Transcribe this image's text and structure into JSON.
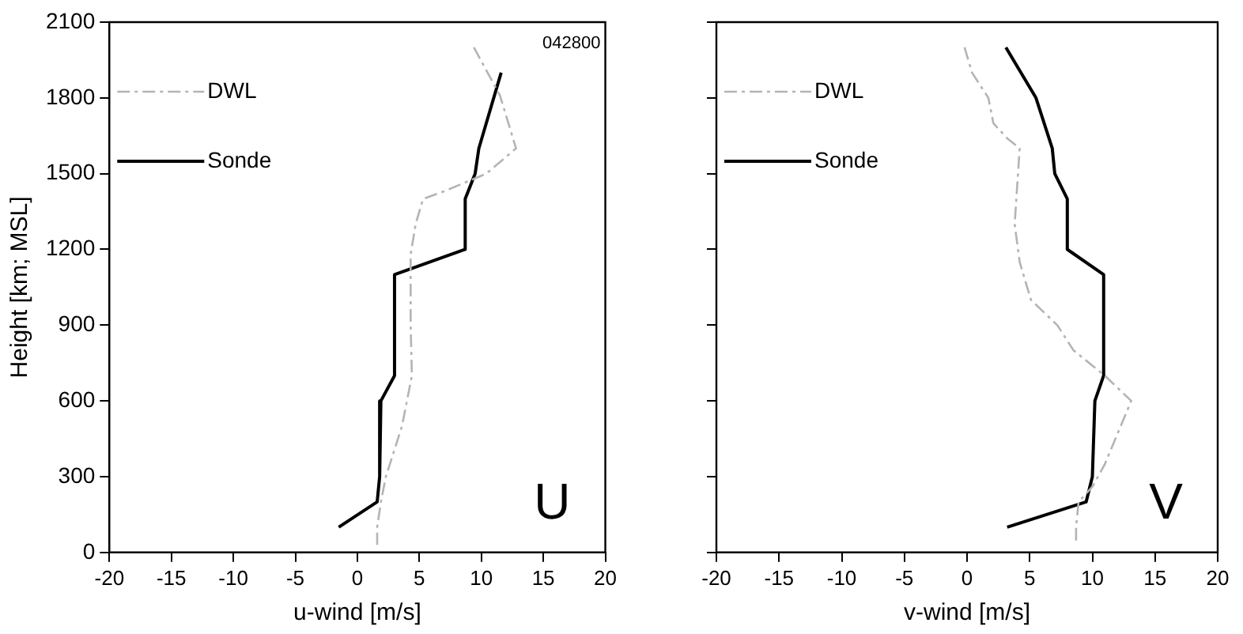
{
  "chart_data": [
    {
      "type": "line",
      "xlabel": "u-wind [m/s]",
      "ylabel": "Height [km; MSL]",
      "xlim": [
        -20,
        20
      ],
      "xticks": [
        -20,
        -15,
        -10,
        -5,
        0,
        5,
        10,
        15,
        20
      ],
      "ylim": [
        0,
        2100
      ],
      "yticks": [
        0,
        300,
        600,
        900,
        1200,
        1500,
        1800,
        2100
      ],
      "grid": false,
      "legend": "top left",
      "annotations": [
        "042800",
        "U"
      ],
      "series": [
        {
          "name": "DWL",
          "color": "#b4b4b4",
          "line_style": "dashed",
          "x": [
            9.4,
            11.5,
            12.8,
            10.4,
            7.0,
            5.3,
            4.7,
            4.3,
            4.3,
            4.4,
            3.6,
            2.3,
            1.9,
            1.6,
            1.6
          ],
          "values": [
            2000,
            1810,
            1600,
            1500,
            1430,
            1400,
            1300,
            1180,
            900,
            700,
            500,
            300,
            200,
            100,
            30
          ]
        },
        {
          "name": "Sonde",
          "color": "#000000",
          "line_style": "solid",
          "x": [
            11.6,
            10.4,
            9.8,
            9.5,
            8.7,
            8.7,
            3.0,
            3.0,
            1.9,
            1.8,
            1.6,
            -1.5
          ],
          "values": [
            1900,
            1700,
            1600,
            1500,
            1400,
            1200,
            1100,
            700,
            600,
            300,
            200,
            100
          ]
        }
      ]
    },
    {
      "type": "line",
      "xlabel": "v-wind [m/s]",
      "xlim": [
        -20,
        20
      ],
      "xticks": [
        -20,
        -15,
        -10,
        -5,
        0,
        5,
        10,
        15,
        20
      ],
      "ylim": [
        0,
        2100
      ],
      "yticks": [
        0,
        300,
        600,
        900,
        1200,
        1500,
        1800,
        2100
      ],
      "tick_labels": "x",
      "grid": false,
      "legend": "top left",
      "annotations": [
        "V"
      ],
      "series": [
        {
          "name": "DWL",
          "color": "#b4b4b4",
          "line_style": "dashed",
          "x": [
            -0.2,
            0.4,
            1.7,
            2.1,
            3.2,
            4.2,
            3.8,
            4.2,
            5.1,
            7.2,
            8.5,
            11.0,
            13.1,
            11.0,
            10.0,
            8.9,
            8.7,
            8.7
          ],
          "values": [
            2000,
            1900,
            1800,
            1700,
            1640,
            1600,
            1300,
            1150,
            1000,
            900,
            800,
            700,
            600,
            350,
            260,
            200,
            100,
            30
          ]
        },
        {
          "name": "Sonde",
          "color": "#000000",
          "line_style": "solid",
          "x": [
            3.1,
            5.5,
            6.8,
            7.0,
            8.0,
            8.0,
            10.9,
            10.9,
            10.2,
            10.0,
            9.5,
            3.2
          ],
          "values": [
            2000,
            1800,
            1600,
            1500,
            1400,
            1200,
            1100,
            700,
            600,
            300,
            200,
            100
          ]
        }
      ]
    }
  ]
}
